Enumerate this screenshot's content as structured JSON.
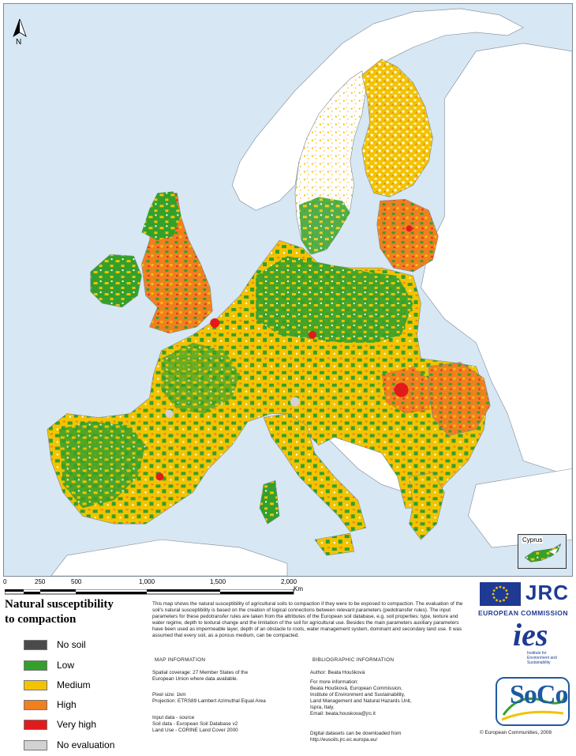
{
  "map": {
    "north_label": "N",
    "inset_label": "Cyprus",
    "colors": {
      "sea": "#d7e7f3",
      "non_eu_land": "#ffffff",
      "no_soil": "#4a4a4a",
      "low": "#33a02c",
      "medium": "#f3c300",
      "high": "#f07f20",
      "very_high": "#e31a1c",
      "no_evaluation": "#d2d2d2"
    }
  },
  "scale": {
    "ticks": [
      "0",
      "250",
      "500",
      "1,000",
      "1,500",
      "2,000"
    ],
    "unit": "Km"
  },
  "legend": {
    "title_line1": "Natural susceptibility",
    "title_line2": "to compaction",
    "items": [
      {
        "label": "No soil",
        "color": "#4a4a4a"
      },
      {
        "label": "Low",
        "color": "#33a02c"
      },
      {
        "label": "Medium",
        "color": "#f3c300"
      },
      {
        "label": "High",
        "color": "#f07f20"
      },
      {
        "label": "Very high",
        "color": "#e31a1c"
      },
      {
        "label": "No evaluation",
        "color": "#d2d2d2"
      }
    ]
  },
  "description": "This map shows the natural susceptibility of agricultural soils to compaction if they were to be exposed to compaction. The evaluation of the soil's natural susceptibility is based on the creation of logical connections between relevant parameters (pedotransfer rules). The input parameters for these pedotransfer rules are taken from the attributes of the European soil database, e.g. soil properties: type, texture and water regime, depth to textural change and the limitation of the soil for agricultural use. Besides the main parameters auxiliary parameters have been used as impermeable layer, depth of an obstacle to roots, water management system, dominant and secondary land use. It was assumed that every soil, as a porous medium, can be compacted.",
  "map_info": {
    "title": "MAP INFORMATION",
    "coverage": "Spatial coverage: 27 Member States of the\nEuropean Union where data available.",
    "pixel": "Pixel size: 1km\nProjection: ETRS89 Lambert Azimuthal Equal Area",
    "input": "Input data - source\nSoil data - European Soil Database v2\nLand Use - CORINE Land Cover 2000"
  },
  "biblio": {
    "title": "BIBLIOGRAPHIC INFORMATION",
    "author": "Author: Beata Houšková",
    "more": "For more information:\nBeata Houšková, European Commission,\nInstitute of Environment and Sustainability,\nLand Management and Natural Hazards Unit,\nIspra, Italy.\nEmail: beata.houskova@jrc.it",
    "download": "Digital datasets can be downloaded from\nhttp://eusoils.jrc.ec.europa.eu/"
  },
  "logos": {
    "jrc": "JRC",
    "ec": "EUROPEAN COMMISSION",
    "ies": "ies",
    "ies_sub": "Institute for\nEnvironment and\nSustainability",
    "soco": "SoCo"
  },
  "copyright": "© European Communities, 2008"
}
